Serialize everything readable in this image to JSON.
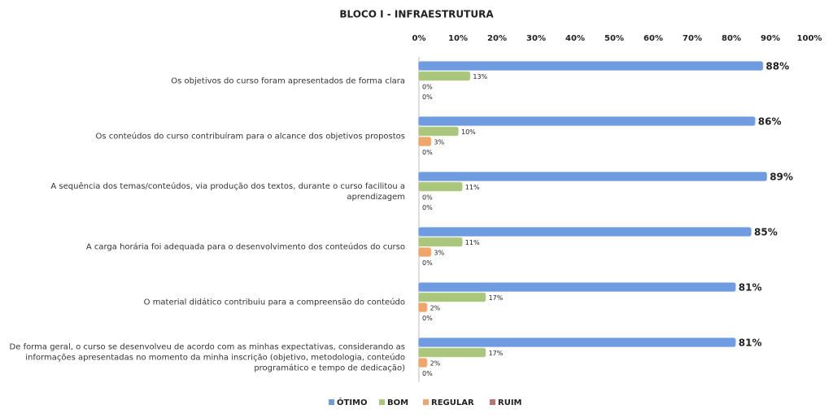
{
  "chart_data": {
    "type": "hbar",
    "title": "BLOCO I - INFRAESTRUTURA",
    "categories": [
      "Os objetivos do curso foram apresentados de forma clara",
      "Os conteúdos do curso contribuíram para o alcance dos objetivos propostos",
      "A sequência dos temas/conteúdos, via produção dos textos, durante o curso facilitou a aprendizagem",
      "A carga horária foi adequada para o desenvolvimento dos conteúdos do curso",
      "O material didático contribuiu para a compreensão do conteúdo",
      "De forma geral, o curso se desenvolveu de acordo com as minhas expectativas, considerando as informações apresentadas no momento da minha inscrição (objetivo, metodologia, conteúdo programático e tempo de dedicação)"
    ],
    "series": [
      {
        "name": "ÓTIMO",
        "color": "#6f9be0",
        "values": [
          88,
          86,
          89,
          85,
          81,
          81
        ],
        "value_labels": [
          "88%",
          "86%",
          "89%",
          "85%",
          "81%",
          "81%"
        ]
      },
      {
        "name": "BOM",
        "color": "#a9c67a",
        "values": [
          13,
          10,
          11,
          11,
          17,
          17
        ],
        "value_labels": [
          "13%",
          "10%",
          "11%",
          "11%",
          "17%",
          "17%"
        ]
      },
      {
        "name": "REGULAR",
        "color": "#f0a56a",
        "values": [
          0,
          3,
          0,
          3,
          2,
          2
        ],
        "value_labels": [
          "0%",
          "3%",
          "0%",
          "3%",
          "2%",
          "2%"
        ]
      },
      {
        "name": "RUIM",
        "color": "#b87272",
        "values": [
          0,
          0,
          0,
          0,
          0,
          0
        ],
        "value_labels": [
          "0%",
          "0%",
          "0%",
          "0%",
          "0%",
          "0%"
        ]
      }
    ],
    "xlim": [
      0,
      100
    ],
    "xticks": [
      {
        "value": 0,
        "label": "0%"
      },
      {
        "value": 10,
        "label": "10%"
      },
      {
        "value": 20,
        "label": "20%"
      },
      {
        "value": 30,
        "label": "30%"
      },
      {
        "value": 40,
        "label": "40%"
      },
      {
        "value": 50,
        "label": "50%"
      },
      {
        "value": 60,
        "label": "60%"
      },
      {
        "value": 70,
        "label": "70%"
      },
      {
        "value": 80,
        "label": "80%"
      },
      {
        "value": 90,
        "label": "90%"
      },
      {
        "value": 100,
        "label": "100%"
      }
    ],
    "legend": "bottom"
  }
}
